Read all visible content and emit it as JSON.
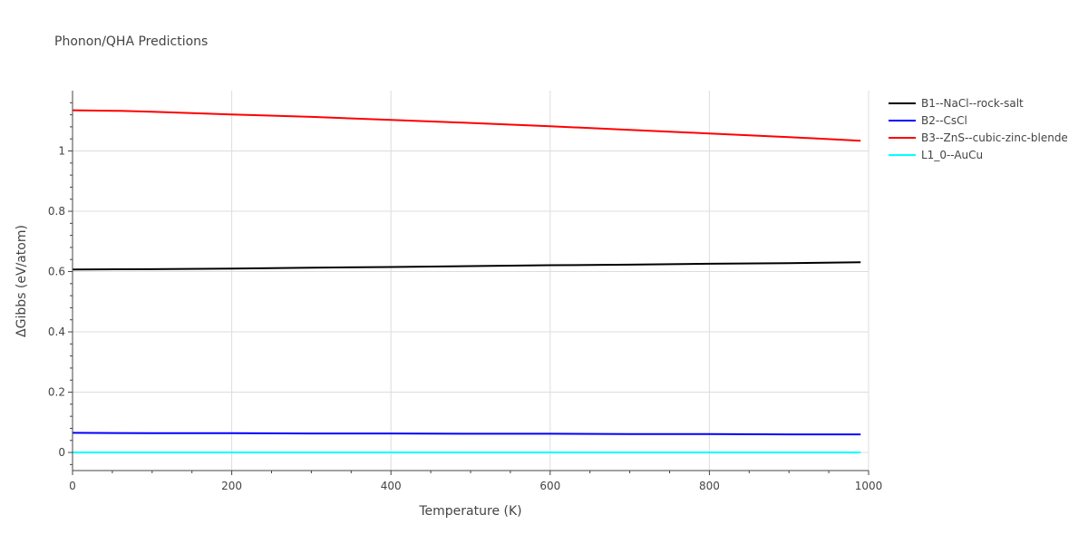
{
  "chart_data": {
    "type": "line",
    "title": "Phonon/QHA Predictions",
    "xlabel": "Temperature (K)",
    "ylabel": "ΔGibbs (eV/atom)",
    "xlim": [
      0,
      1000
    ],
    "ylim": [
      -0.06,
      1.2
    ],
    "xticks": [
      0,
      200,
      400,
      600,
      800,
      1000
    ],
    "yticks": [
      0,
      0.2,
      0.4,
      0.6,
      0.8,
      1
    ],
    "xtick_labels": [
      "0",
      "200",
      "400",
      "600",
      "800",
      "1000"
    ],
    "ytick_labels": [
      "0",
      "0.2",
      "0.4",
      "0.6",
      "0.8",
      "1"
    ],
    "grid": true,
    "legend_position": "top-right-outside",
    "series": [
      {
        "name": "B1--NaCl--rock-salt",
        "color": "#000000",
        "x": [
          0,
          100,
          200,
          300,
          400,
          500,
          600,
          700,
          800,
          900,
          990
        ],
        "y": [
          0.607,
          0.608,
          0.61,
          0.613,
          0.615,
          0.618,
          0.621,
          0.623,
          0.626,
          0.628,
          0.631
        ]
      },
      {
        "name": "B2--CsCl",
        "color": "#0000ff",
        "x": [
          0,
          100,
          200,
          300,
          400,
          500,
          600,
          700,
          800,
          900,
          990
        ],
        "y": [
          0.065,
          0.064,
          0.064,
          0.063,
          0.063,
          0.062,
          0.062,
          0.061,
          0.061,
          0.06,
          0.06
        ]
      },
      {
        "name": "B3--ZnS--cubic-zinc-blende",
        "color": "#ff0000",
        "x": [
          0,
          60,
          100,
          200,
          300,
          400,
          500,
          600,
          700,
          800,
          900,
          990
        ],
        "y": [
          1.135,
          1.133,
          1.13,
          1.121,
          1.113,
          1.103,
          1.093,
          1.082,
          1.07,
          1.058,
          1.046,
          1.034
        ]
      },
      {
        "name": "L1_0--AuCu",
        "color": "#00ffff",
        "x": [
          0,
          990
        ],
        "y": [
          0,
          0
        ]
      }
    ]
  }
}
